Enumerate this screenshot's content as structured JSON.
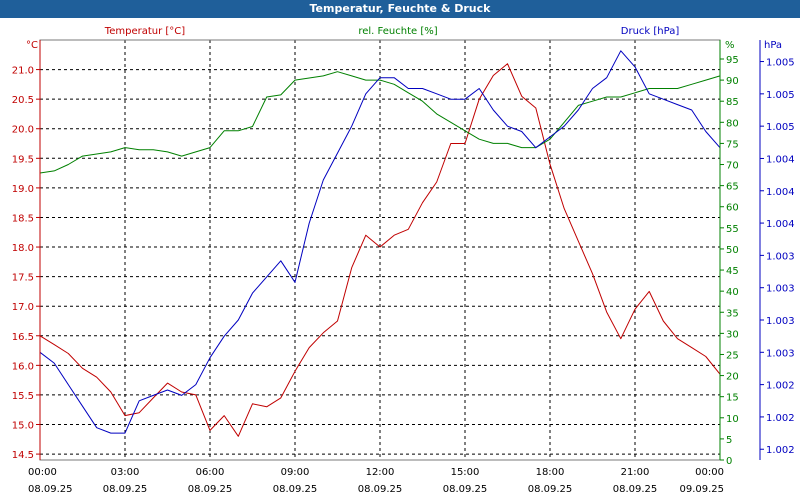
{
  "window": {
    "title": "Temperatur, Feuchte & Druck"
  },
  "colors": {
    "temperature": "#c00000",
    "humidity": "#008000",
    "pressure": "#0000c0",
    "titlebar": "#1f5f9a",
    "grid": "#000000"
  },
  "chart_data": {
    "type": "line",
    "title": "Temperatur, Feuchte & Druck",
    "legend": [
      "Temperatur [°C]",
      "rel. Feuchte [%]",
      "Druck [hPa]"
    ],
    "grid": true,
    "x": {
      "range_hours": [
        0,
        24
      ],
      "ticks": [
        {
          "h": 0,
          "time": "00:00",
          "date": "08.09.25"
        },
        {
          "h": 3,
          "time": "03:00",
          "date": "08.09.25"
        },
        {
          "h": 6,
          "time": "06:00",
          "date": "08.09.25"
        },
        {
          "h": 9,
          "time": "09:00",
          "date": "08.09.25"
        },
        {
          "h": 12,
          "time": "12:00",
          "date": "08.09.25"
        },
        {
          "h": 15,
          "time": "15:00",
          "date": "08.09.25"
        },
        {
          "h": 18,
          "time": "18:00",
          "date": "08.09.25"
        },
        {
          "h": 21,
          "time": "21:00",
          "date": "08.09.25"
        },
        {
          "h": 24,
          "time": "00:00",
          "date": "09.09.25"
        }
      ]
    },
    "axes": {
      "temperature": {
        "unit": "°C",
        "range": [
          14.4,
          21.5
        ],
        "ticks": [
          {
            "v": 14.5,
            "label": "14.5"
          },
          {
            "v": 15.0,
            "label": "15.0"
          },
          {
            "v": 15.5,
            "label": "15.5"
          },
          {
            "v": 16.0,
            "label": "16.0"
          },
          {
            "v": 16.5,
            "label": "16.5"
          },
          {
            "v": 17.0,
            "label": "17.0"
          },
          {
            "v": 17.5,
            "label": "17.5"
          },
          {
            "v": 18.0,
            "label": "18.0"
          },
          {
            "v": 18.5,
            "label": "18.5"
          },
          {
            "v": 19.0,
            "label": "19.0"
          },
          {
            "v": 19.5,
            "label": "19.5"
          },
          {
            "v": 20.0,
            "label": "20.0"
          },
          {
            "v": 20.5,
            "label": "20.5"
          },
          {
            "v": 21.0,
            "label": "21.0"
          }
        ]
      },
      "humidity": {
        "unit": "%",
        "range": [
          0,
          99.5
        ],
        "ticks": [
          {
            "v": 0,
            "label": "0"
          },
          {
            "v": 5,
            "label": "5"
          },
          {
            "v": 10,
            "label": "10"
          },
          {
            "v": 15,
            "label": "15"
          },
          {
            "v": 20,
            "label": "20"
          },
          {
            "v": 25,
            "label": "25"
          },
          {
            "v": 30,
            "label": "30"
          },
          {
            "v": 35,
            "label": "35"
          },
          {
            "v": 40,
            "label": "40"
          },
          {
            "v": 45,
            "label": "45"
          },
          {
            "v": 50,
            "label": "50"
          },
          {
            "v": 55,
            "label": "55"
          },
          {
            "v": 60,
            "label": "60"
          },
          {
            "v": 65,
            "label": "65"
          },
          {
            "v": 70,
            "label": "70"
          },
          {
            "v": 75,
            "label": "75"
          },
          {
            "v": 80,
            "label": "80"
          },
          {
            "v": 85,
            "label": "85"
          },
          {
            "v": 90,
            "label": "90"
          },
          {
            "v": 95,
            "label": "95"
          }
        ]
      },
      "pressure": {
        "unit": "hPa",
        "range": [
          1001.5,
          1005.4
        ],
        "ticks": [
          {
            "v": 1001.6,
            "label": "1.002"
          },
          {
            "v": 1001.9,
            "label": "1.002"
          },
          {
            "v": 1002.2,
            "label": "1.002"
          },
          {
            "v": 1002.5,
            "label": "1.003"
          },
          {
            "v": 1002.8,
            "label": "1.003"
          },
          {
            "v": 1003.1,
            "label": "1.003"
          },
          {
            "v": 1003.4,
            "label": "1.003"
          },
          {
            "v": 1003.7,
            "label": "1.004"
          },
          {
            "v": 1004.0,
            "label": "1.004"
          },
          {
            "v": 1004.3,
            "label": "1.004"
          },
          {
            "v": 1004.6,
            "label": "1.005"
          },
          {
            "v": 1004.9,
            "label": "1.005"
          },
          {
            "v": 1005.2,
            "label": "1.005"
          }
        ]
      }
    },
    "series": [
      {
        "name": "Temperatur [°C]",
        "axis": "temperature",
        "color": "#c00000",
        "x": [
          0,
          0.5,
          1,
          1.5,
          2,
          2.5,
          3,
          3.5,
          4,
          4.5,
          5,
          5.5,
          6,
          6.5,
          7,
          7.5,
          8,
          8.5,
          9,
          9.5,
          10,
          10.5,
          11,
          11.5,
          12,
          12.5,
          13,
          13.5,
          14,
          14.5,
          15,
          15.5,
          16,
          16.5,
          17,
          17.5,
          18,
          18.5,
          19,
          19.5,
          20,
          20.5,
          21,
          21.5,
          22,
          22.5,
          23,
          23.5,
          24
        ],
        "values": [
          16.5,
          16.35,
          16.2,
          15.95,
          15.8,
          15.55,
          15.15,
          15.2,
          15.45,
          15.7,
          15.55,
          15.5,
          14.9,
          15.15,
          14.8,
          15.35,
          15.3,
          15.45,
          15.9,
          16.3,
          16.55,
          16.75,
          17.65,
          18.2,
          18.0,
          18.2,
          18.3,
          18.75,
          19.1,
          19.75,
          19.75,
          20.5,
          20.9,
          21.1,
          20.55,
          20.35,
          19.4,
          18.65,
          18.1,
          17.55,
          16.9,
          16.45,
          16.95,
          17.25,
          16.75,
          16.45,
          16.3,
          16.15,
          15.85
        ]
      },
      {
        "name": "rel. Feuchte [%]",
        "axis": "humidity",
        "color": "#008000",
        "x": [
          0,
          0.5,
          1,
          1.5,
          2,
          2.5,
          3,
          3.5,
          4,
          4.5,
          5,
          5.5,
          6,
          6.5,
          7,
          7.5,
          8,
          8.5,
          9,
          9.5,
          10,
          10.5,
          11,
          11.5,
          12,
          12.5,
          13,
          13.5,
          14,
          14.5,
          15,
          15.5,
          16,
          16.5,
          17,
          17.5,
          18,
          18.5,
          19,
          19.5,
          20,
          20.5,
          21,
          21.5,
          22,
          22.5,
          23,
          23.5,
          24
        ],
        "values": [
          68,
          68.5,
          70,
          72,
          72.5,
          73,
          74,
          73.5,
          73.5,
          73,
          72,
          73,
          74,
          78,
          78,
          79,
          86,
          86.5,
          90,
          90.5,
          91,
          92,
          91,
          90,
          90,
          89,
          87,
          85,
          82,
          80,
          78,
          76,
          75,
          75,
          74,
          74,
          76,
          80,
          84,
          85,
          86,
          86,
          87,
          88,
          88,
          88,
          89,
          90,
          91
        ]
      },
      {
        "name": "Druck [hPa]",
        "axis": "pressure",
        "color": "#0000c0",
        "x": [
          0,
          0.5,
          1,
          1.5,
          2,
          2.5,
          3,
          3.5,
          4,
          4.5,
          5,
          5.5,
          6,
          6.5,
          7,
          7.5,
          8,
          8.5,
          9,
          9.5,
          10,
          10.5,
          11,
          11.5,
          12,
          12.5,
          13,
          13.5,
          14,
          14.5,
          15,
          15.5,
          16,
          16.5,
          17,
          17.5,
          18,
          18.5,
          19,
          19.5,
          20,
          20.5,
          21,
          21.5,
          22,
          22.5,
          23,
          23.5,
          24
        ],
        "values": [
          1002.5,
          1002.4,
          1002.2,
          1002.0,
          1001.8,
          1001.75,
          1001.75,
          1002.05,
          1002.1,
          1002.15,
          1002.1,
          1002.2,
          1002.45,
          1002.65,
          1002.8,
          1003.05,
          1003.2,
          1003.35,
          1003.15,
          1003.7,
          1004.1,
          1004.35,
          1004.6,
          1004.9,
          1005.05,
          1005.05,
          1004.95,
          1004.95,
          1004.9,
          1004.85,
          1004.85,
          1004.95,
          1004.75,
          1004.6,
          1004.55,
          1004.4,
          1004.5,
          1004.6,
          1004.75,
          1004.95,
          1005.05,
          1005.3,
          1005.15,
          1004.9,
          1004.85,
          1004.8,
          1004.75,
          1004.55,
          1004.4
        ]
      }
    ]
  }
}
